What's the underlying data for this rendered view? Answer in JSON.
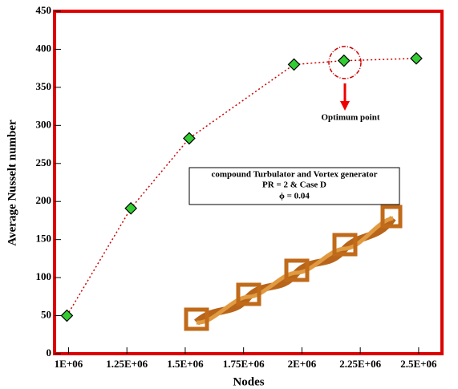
{
  "chart_data": {
    "type": "line",
    "x_label": "Nodes",
    "y_label": "Average Nusselt number",
    "x": [
      993000,
      1267000,
      1517000,
      1966000,
      2180000,
      2490000
    ],
    "series": [
      {
        "values": [
          50,
          191,
          283,
          380,
          385,
          388
        ],
        "color": "#33cc33",
        "line_color": "#cc0000"
      }
    ],
    "xlim": [
      940000,
      2600000
    ],
    "xticks": [
      {
        "value": 1000000,
        "label": "1E+06"
      },
      {
        "value": 1250000,
        "label": "1.25E+06"
      },
      {
        "value": 1500000,
        "label": "1.5E+06"
      },
      {
        "value": 1750000,
        "label": "1.75E+06"
      },
      {
        "value": 2000000,
        "label": "2E+06"
      },
      {
        "value": 2250000,
        "label": "2.25E+06"
      },
      {
        "value": 2500000,
        "label": "2.5E+06"
      }
    ],
    "ylim": [
      0,
      450
    ],
    "yticks": [
      0,
      50,
      100,
      150,
      200,
      250,
      300,
      350,
      400,
      450
    ],
    "frame_color": "#dd0000",
    "annotations": [
      "Optimum point",
      "compound Turbulator and Vortex generator",
      "PR = 2 & Case D",
      "ϕ = 0.04"
    ]
  }
}
